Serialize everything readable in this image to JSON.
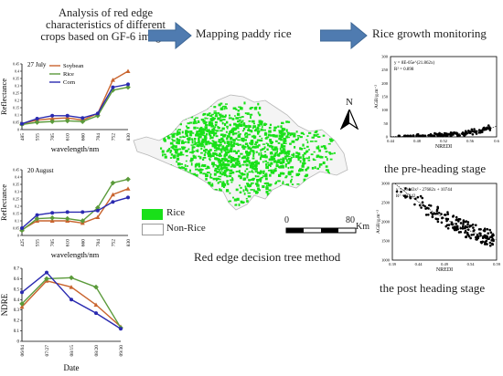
{
  "header": {
    "title_lines": [
      "Analysis of red edge",
      "characteristics of different",
      "crops based on GF-6 images"
    ],
    "mapping": "Mapping paddy rice",
    "monitoring": "Rice growth monitoring"
  },
  "colors": {
    "soybean": "#c9642e",
    "rice": "#5a9a3a",
    "corn": "#2a2ab0",
    "arrow": "#4f7bb0",
    "rice_map": "#19e019",
    "scatter": "#000000"
  },
  "chart_data": [
    {
      "type": "line",
      "annotation": "27 July",
      "xlabel": "wavelength/nm",
      "ylabel": "Reflectance",
      "categories": [
        "485",
        "555",
        "705",
        "610",
        "660",
        "704",
        "752",
        "830"
      ],
      "ylim": [
        0,
        0.45
      ],
      "yticks": [
        "0",
        "0.05",
        "0.1",
        "0.15",
        "0.2",
        "0.25",
        "0.3",
        "0.35",
        "0.4",
        "0.45"
      ],
      "series": [
        {
          "name": "Soybean",
          "values": [
            0.04,
            0.065,
            0.075,
            0.08,
            0.065,
            0.11,
            0.34,
            0.4
          ]
        },
        {
          "name": "Rice",
          "values": [
            0.035,
            0.05,
            0.055,
            0.06,
            0.055,
            0.095,
            0.27,
            0.29
          ]
        },
        {
          "name": "Corn",
          "values": [
            0.04,
            0.075,
            0.095,
            0.095,
            0.08,
            0.11,
            0.29,
            0.31
          ]
        }
      ],
      "legend": "top-left"
    },
    {
      "type": "line",
      "annotation": "20 August",
      "xlabel": "wavelength/nm",
      "ylabel": "Reflectance",
      "categories": [
        "425",
        "555",
        "705",
        "610",
        "660",
        "704",
        "752",
        "830"
      ],
      "ylim": [
        0,
        0.45
      ],
      "yticks": [
        "0",
        "0.05",
        "0.1",
        "0.15",
        "0.2",
        "0.25",
        "0.3",
        "0.35",
        "0.4",
        "0.45"
      ],
      "series": [
        {
          "name": "Soybean",
          "values": [
            0.04,
            0.1,
            0.1,
            0.1,
            0.085,
            0.125,
            0.28,
            0.32
          ]
        },
        {
          "name": "Rice",
          "values": [
            0.035,
            0.115,
            0.12,
            0.115,
            0.1,
            0.19,
            0.36,
            0.385
          ]
        },
        {
          "name": "Corn",
          "values": [
            0.05,
            0.14,
            0.155,
            0.16,
            0.16,
            0.17,
            0.23,
            0.26
          ]
        }
      ]
    },
    {
      "type": "line",
      "xlabel": "Date",
      "ylabel": "NDRE",
      "categories": [
        "06/04",
        "07/27",
        "08/15",
        "08/20",
        "09/30"
      ],
      "ylim": [
        0,
        0.7
      ],
      "yticks": [
        "0",
        "0.1",
        "0.2",
        "0.3",
        "0.4",
        "0.5",
        "0.6",
        "0.7"
      ],
      "series": [
        {
          "name": "Soybean",
          "values": [
            0.33,
            0.58,
            0.52,
            0.35,
            0.14
          ]
        },
        {
          "name": "Rice",
          "values": [
            0.36,
            0.6,
            0.61,
            0.52,
            0.13
          ]
        },
        {
          "name": "Corn",
          "values": [
            0.47,
            0.66,
            0.4,
            0.27,
            0.12
          ]
        }
      ]
    },
    {
      "type": "scatter",
      "xlabel": "NREDI",
      "ylabel": "AGB/g.m⁻²",
      "xlim": [
        0.44,
        0.6
      ],
      "ylim": [
        0,
        300
      ],
      "xticks": [
        "0.44",
        "0.48",
        "0.52",
        "0.56",
        "0.6"
      ],
      "yticks": [
        "0",
        "50",
        "100",
        "150",
        "200",
        "250",
        "300"
      ],
      "equation": "y = 8E-05e^(21.862x)",
      "r2": "R² = 0.898",
      "caption": "the pre-heading stage"
    },
    {
      "type": "scatter",
      "xlabel": "NREDI",
      "ylabel": "AGB/g.m⁻²",
      "xlim": [
        0.39,
        0.59
      ],
      "ylim": [
        1000,
        3000
      ],
      "xticks": [
        "0.39",
        "0.44",
        "0.49",
        "0.54",
        "0.59"
      ],
      "yticks": [
        "1000",
        "1500",
        "2000",
        "2500",
        "3000"
      ],
      "equation": "y = 20443x² - 27682x + 10744",
      "r2": "R² = 0.842",
      "caption": "the post heading stage"
    }
  ],
  "map": {
    "legend_rice": "Rice",
    "legend_nonrice": "Non-Rice",
    "north": "N",
    "scale_start": "0",
    "scale_end": "80",
    "scale_unit": "Km",
    "caption": "Red edge decision tree method"
  }
}
